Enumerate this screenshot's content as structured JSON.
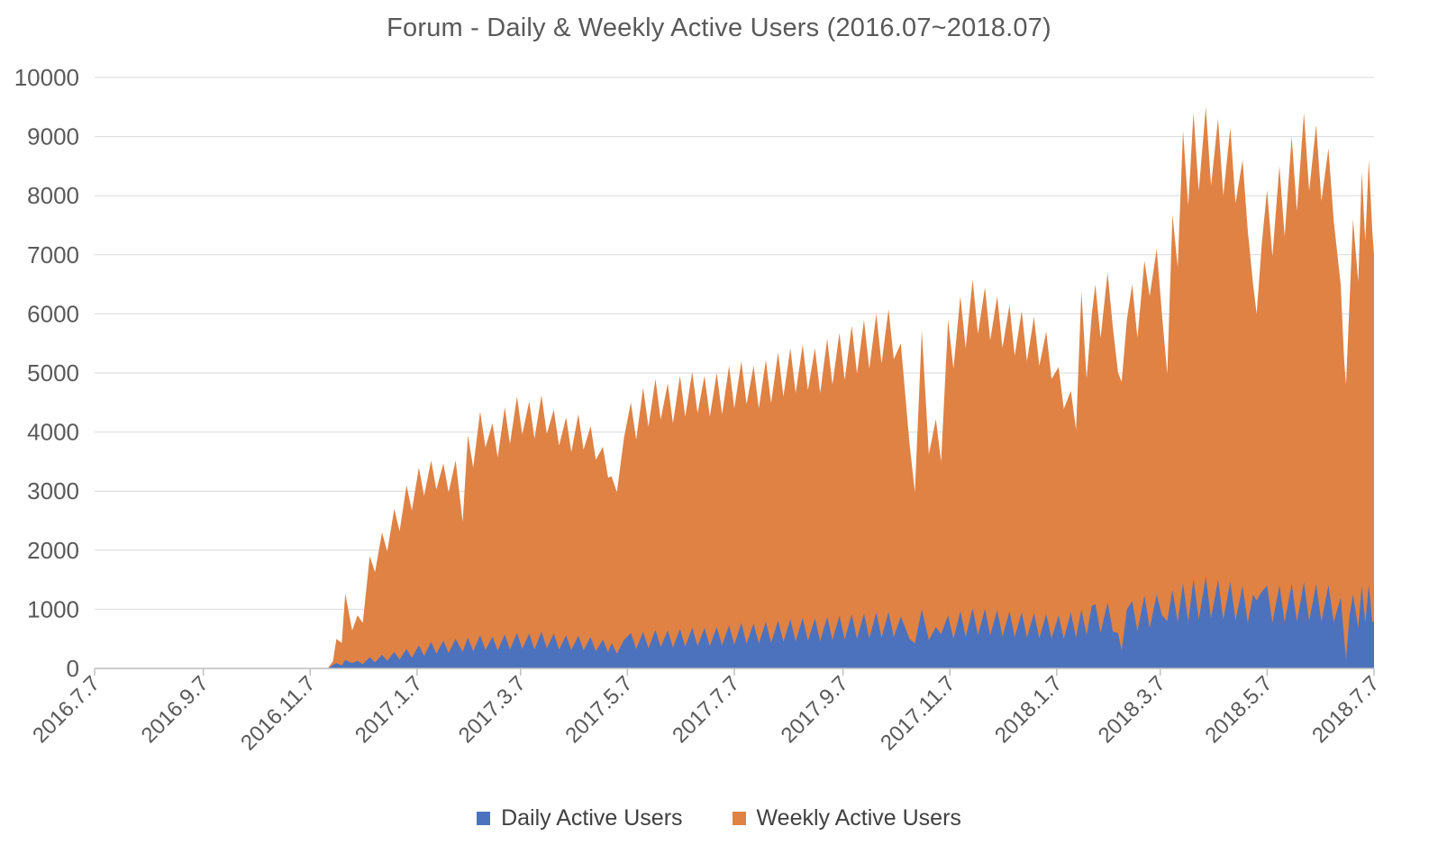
{
  "colors": {
    "background": "#FFFFFF",
    "title_text": "#595959",
    "axis_labels": "#595959",
    "legend_text": "#404040",
    "gridline": "#D9D9D9",
    "axis_line": "#BFBFBF",
    "daily_series": "#4C72BE",
    "weekly_series": "#DF8244"
  },
  "chart_data": {
    "type": "area",
    "title": "Forum - Daily & Weekly Active Users (2016.07~2018.07)",
    "grid": true,
    "legend_position": "bottom",
    "x_axis": {
      "tick_labels": [
        "2016.7.7",
        "2016.9.7",
        "2016.11.7",
        "2017.1.7",
        "2017.3.7",
        "2017.5.7",
        "2017.7.7",
        "2017.9.7",
        "2017.11.7",
        "2018.1.7",
        "2018.3.7",
        "2018.5.7",
        "2018.7.7"
      ],
      "tick_days": [
        0,
        62,
        123,
        184,
        243,
        304,
        365,
        427,
        488,
        549,
        608,
        669,
        730
      ],
      "total_days": 730,
      "label_rotation_deg": -45
    },
    "y_axis": {
      "min": 0,
      "max": 10000,
      "ticks": [
        0,
        1000,
        2000,
        3000,
        4000,
        5000,
        6000,
        7000,
        8000,
        9000,
        10000
      ]
    },
    "series": [
      {
        "name": "Daily Active Users",
        "color": "#4C72BE",
        "points_column": 1
      },
      {
        "name": "Weekly Active Users",
        "color": "#DF8244",
        "points_column": 2
      }
    ],
    "points_columns": [
      "day_offset_from_2016.7.7",
      "daily_active_users",
      "weekly_active_users"
    ],
    "points": [
      [
        133,
        0,
        0
      ],
      [
        136,
        60,
        120
      ],
      [
        138,
        90,
        500
      ],
      [
        141,
        50,
        430
      ],
      [
        143,
        140,
        1270
      ],
      [
        147,
        90,
        640
      ],
      [
        150,
        130,
        900
      ],
      [
        153,
        70,
        770
      ],
      [
        157,
        190,
        1900
      ],
      [
        160,
        100,
        1630
      ],
      [
        164,
        230,
        2300
      ],
      [
        167,
        130,
        1980
      ],
      [
        171,
        280,
        2700
      ],
      [
        174,
        150,
        2320
      ],
      [
        178,
        330,
        3100
      ],
      [
        181,
        180,
        2670
      ],
      [
        185,
        390,
        3400
      ],
      [
        188,
        210,
        2920
      ],
      [
        192,
        450,
        3520
      ],
      [
        195,
        250,
        3030
      ],
      [
        199,
        470,
        3470
      ],
      [
        202,
        260,
        2980
      ],
      [
        206,
        500,
        3520
      ],
      [
        210,
        280,
        2480
      ],
      [
        213,
        520,
        3950
      ],
      [
        216,
        290,
        3400
      ],
      [
        220,
        560,
        4350
      ],
      [
        223,
        310,
        3740
      ],
      [
        227,
        540,
        4150
      ],
      [
        230,
        300,
        3570
      ],
      [
        234,
        575,
        4420
      ],
      [
        237,
        320,
        3800
      ],
      [
        241,
        600,
        4600
      ],
      [
        244,
        330,
        3960
      ],
      [
        248,
        590,
        4520
      ],
      [
        251,
        320,
        3890
      ],
      [
        255,
        620,
        4620
      ],
      [
        258,
        340,
        3970
      ],
      [
        262,
        590,
        4380
      ],
      [
        265,
        320,
        3770
      ],
      [
        269,
        560,
        4250
      ],
      [
        272,
        310,
        3660
      ],
      [
        276,
        555,
        4300
      ],
      [
        279,
        310,
        3700
      ],
      [
        283,
        530,
        4100
      ],
      [
        286,
        290,
        3530
      ],
      [
        290,
        490,
        3750
      ],
      [
        293,
        270,
        3230
      ],
      [
        295,
        430,
        3250
      ],
      [
        298,
        250,
        2980
      ],
      [
        302,
        480,
        3900
      ],
      [
        306,
        600,
        4500
      ],
      [
        309,
        330,
        3870
      ],
      [
        313,
        620,
        4750
      ],
      [
        316,
        340,
        4090
      ],
      [
        320,
        650,
        4900
      ],
      [
        323,
        360,
        4210
      ],
      [
        327,
        645,
        4820
      ],
      [
        330,
        350,
        4150
      ],
      [
        334,
        670,
        4950
      ],
      [
        337,
        370,
        4260
      ],
      [
        341,
        690,
        5020
      ],
      [
        344,
        380,
        4320
      ],
      [
        348,
        685,
        4950
      ],
      [
        351,
        380,
        4260
      ],
      [
        355,
        700,
        5000
      ],
      [
        358,
        390,
        4300
      ],
      [
        362,
        730,
        5120
      ],
      [
        365,
        400,
        4400
      ],
      [
        369,
        770,
        5200
      ],
      [
        372,
        420,
        4470
      ],
      [
        376,
        760,
        5120
      ],
      [
        379,
        420,
        4400
      ],
      [
        383,
        790,
        5220
      ],
      [
        386,
        430,
        4490
      ],
      [
        390,
        810,
        5350
      ],
      [
        393,
        450,
        4600
      ],
      [
        397,
        830,
        5420
      ],
      [
        400,
        460,
        4660
      ],
      [
        404,
        855,
        5480
      ],
      [
        407,
        470,
        4710
      ],
      [
        411,
        845,
        5420
      ],
      [
        414,
        460,
        4660
      ],
      [
        418,
        870,
        5580
      ],
      [
        421,
        480,
        4800
      ],
      [
        425,
        890,
        5680
      ],
      [
        428,
        490,
        4880
      ],
      [
        432,
        915,
        5800
      ],
      [
        435,
        500,
        4990
      ],
      [
        439,
        930,
        5900
      ],
      [
        442,
        510,
        5070
      ],
      [
        446,
        945,
        6000
      ],
      [
        449,
        520,
        5160
      ],
      [
        453,
        955,
        6080
      ],
      [
        456,
        530,
        5230
      ],
      [
        460,
        880,
        5500
      ],
      [
        465,
        500,
        3800
      ],
      [
        468,
        420,
        2980
      ],
      [
        472,
        1000,
        5720
      ],
      [
        476,
        480,
        3620
      ],
      [
        480,
        700,
        4220
      ],
      [
        483,
        580,
        3500
      ],
      [
        487,
        900,
        5900
      ],
      [
        490,
        500,
        5070
      ],
      [
        494,
        970,
        6300
      ],
      [
        497,
        530,
        5420
      ],
      [
        501,
        1020,
        6580
      ],
      [
        504,
        560,
        5660
      ],
      [
        508,
        1010,
        6450
      ],
      [
        511,
        560,
        5550
      ],
      [
        515,
        990,
        6300
      ],
      [
        518,
        540,
        5420
      ],
      [
        522,
        965,
        6150
      ],
      [
        525,
        530,
        5290
      ],
      [
        529,
        950,
        6050
      ],
      [
        532,
        520,
        5200
      ],
      [
        536,
        935,
        5950
      ],
      [
        539,
        510,
        5120
      ],
      [
        543,
        920,
        5700
      ],
      [
        546,
        510,
        4900
      ],
      [
        550,
        900,
        5100
      ],
      [
        553,
        500,
        4390
      ],
      [
        557,
        950,
        4700
      ],
      [
        560,
        520,
        4040
      ],
      [
        563,
        1000,
        6380
      ],
      [
        566,
        560,
        4900
      ],
      [
        569,
        1060,
        6000
      ],
      [
        571,
        1090,
        6500
      ],
      [
        574,
        600,
        5590
      ],
      [
        578,
        1120,
        6700
      ],
      [
        581,
        620,
        5760
      ],
      [
        584,
        600,
        5000
      ],
      [
        586,
        300,
        4850
      ],
      [
        589,
        1000,
        5900
      ],
      [
        592,
        1140,
        6500
      ],
      [
        595,
        630,
        5590
      ],
      [
        599,
        1230,
        6900
      ],
      [
        602,
        680,
        6300
      ],
      [
        606,
        1250,
        7100
      ],
      [
        609,
        900,
        6000
      ],
      [
        612,
        800,
        4980
      ],
      [
        615,
        1330,
        7680
      ],
      [
        618,
        780,
        6790
      ],
      [
        621,
        1440,
        9100
      ],
      [
        624,
        790,
        7830
      ],
      [
        627,
        1510,
        9400
      ],
      [
        630,
        830,
        8080
      ],
      [
        634,
        1550,
        9500
      ],
      [
        637,
        850,
        8170
      ],
      [
        641,
        1500,
        9300
      ],
      [
        644,
        830,
        8000
      ],
      [
        648,
        1470,
        9150
      ],
      [
        651,
        810,
        7870
      ],
      [
        655,
        1400,
        8600
      ],
      [
        658,
        770,
        7400
      ],
      [
        661,
        1250,
        6500
      ],
      [
        663,
        1150,
        6000
      ],
      [
        666,
        1300,
        7200
      ],
      [
        669,
        1400,
        8100
      ],
      [
        672,
        770,
        6970
      ],
      [
        676,
        1410,
        8500
      ],
      [
        679,
        780,
        7310
      ],
      [
        683,
        1430,
        9000
      ],
      [
        686,
        790,
        7740
      ],
      [
        690,
        1460,
        9400
      ],
      [
        693,
        800,
        8080
      ],
      [
        697,
        1430,
        9200
      ],
      [
        700,
        790,
        7910
      ],
      [
        704,
        1410,
        8800
      ],
      [
        707,
        780,
        7570
      ],
      [
        711,
        1200,
        6500
      ],
      [
        713,
        500,
        5200
      ],
      [
        714,
        150,
        4800
      ],
      [
        716,
        900,
        6200
      ],
      [
        718,
        1250,
        7600
      ],
      [
        721,
        690,
        6540
      ],
      [
        723,
        1400,
        8400
      ],
      [
        725,
        770,
        7220
      ],
      [
        727,
        1420,
        8600
      ],
      [
        729,
        780,
        7400
      ],
      [
        730,
        800,
        7000
      ]
    ]
  }
}
